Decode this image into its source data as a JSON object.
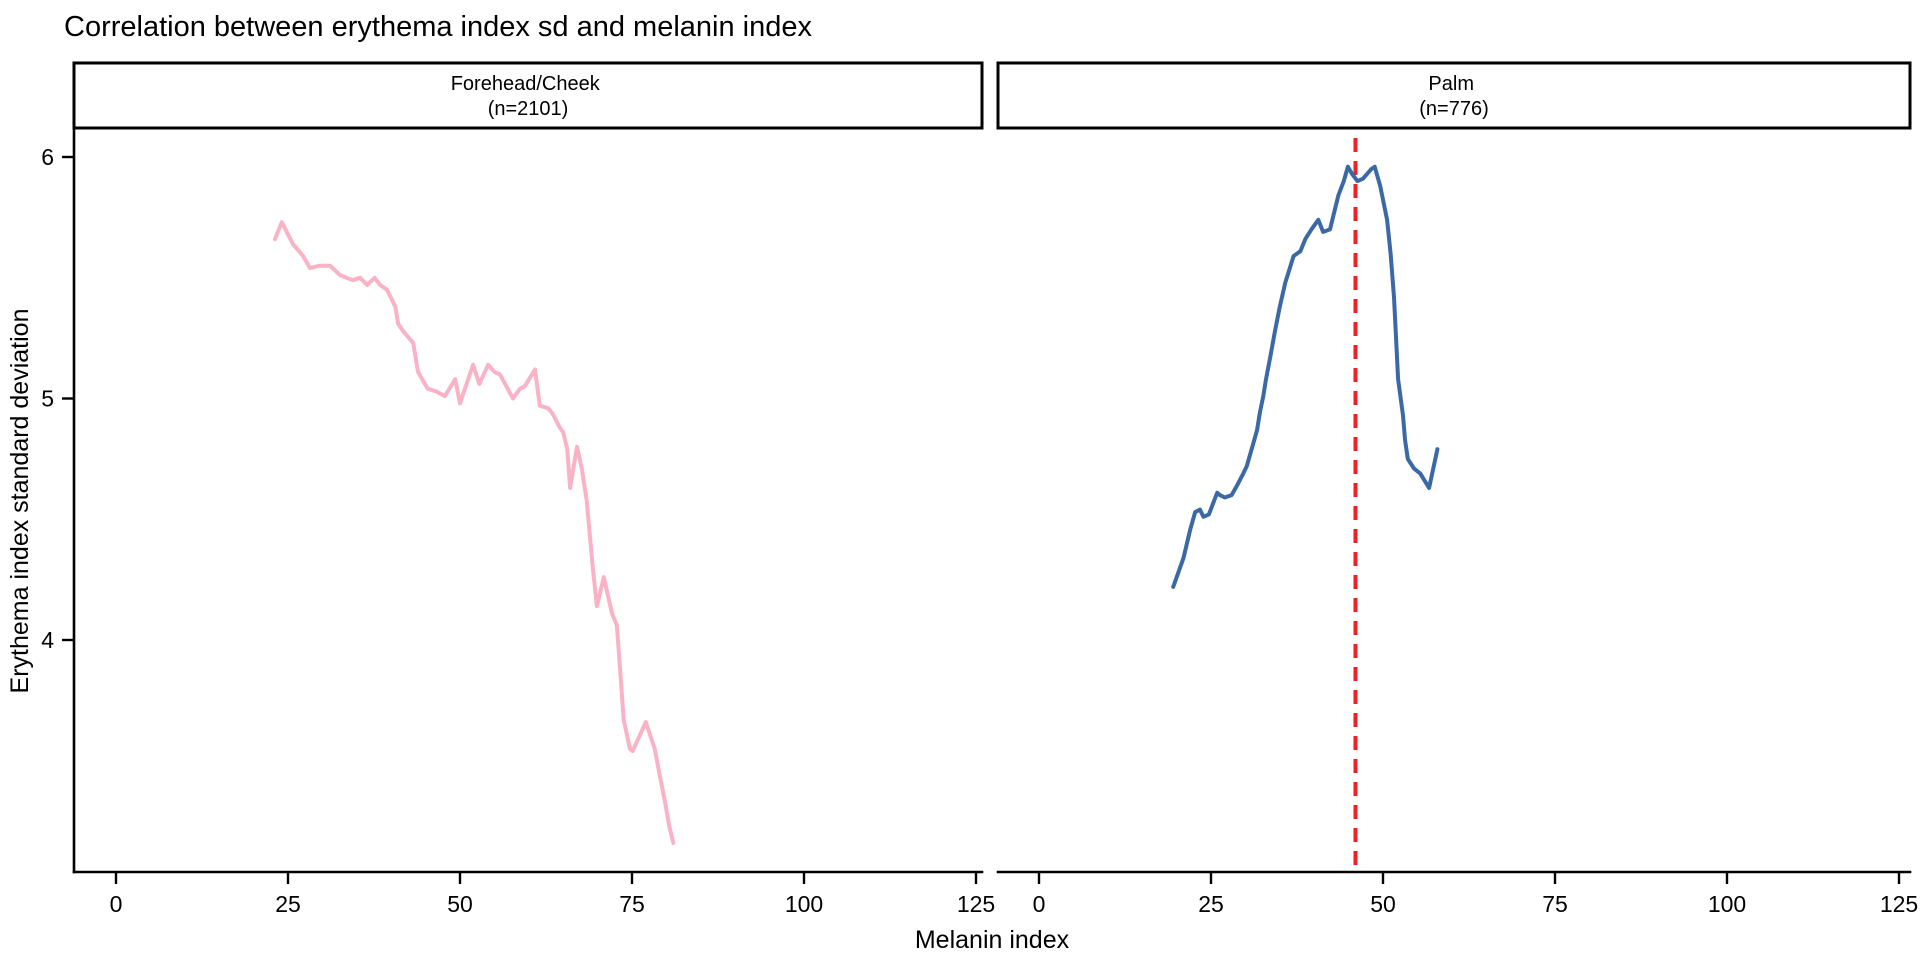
{
  "title": "Correlation between erythema index sd and melanin index",
  "x_axis": {
    "label": "Melanin index",
    "ticks": [
      "0",
      "25",
      "50",
      "75",
      "100",
      "125"
    ]
  },
  "y_axis": {
    "label": "Erythema index standard deviation",
    "ticks": [
      "4",
      "5",
      "6"
    ]
  },
  "facets": [
    {
      "strip_line1": "Forehead/Cheek",
      "strip_line2": "(n=2101)"
    },
    {
      "strip_line1": "Palm",
      "strip_line2": "(n=776)"
    }
  ],
  "colors": {
    "forehead_cheek_line": "#F9B2C6",
    "palm_line": "#3A69A5",
    "reference_line": "#EE2222",
    "axis": "#000000",
    "background": "#FFFFFF"
  },
  "chart_data": {
    "type": "line",
    "title": "Correlation between erythema index sd and melanin index",
    "xlabel": "Melanin index",
    "ylabel": "Erythema index standard deviation",
    "x_ticks": [
      0,
      25,
      50,
      75,
      100,
      125
    ],
    "y_ticks": [
      4,
      5,
      6
    ],
    "xlim": [
      -6,
      126
    ],
    "ylim": [
      3.05,
      6.1
    ],
    "grid": false,
    "legend": false,
    "facets": [
      {
        "name": "Forehead/Cheek",
        "n": 2101,
        "color": "#F9B2C6",
        "points": [
          [
            23.1,
            5.66
          ],
          [
            24.1,
            5.73
          ],
          [
            25.7,
            5.64
          ],
          [
            27.2,
            5.59
          ],
          [
            28.2,
            5.54
          ],
          [
            29.6,
            5.55
          ],
          [
            31.1,
            5.55
          ],
          [
            32.6,
            5.51
          ],
          [
            34.4,
            5.49
          ],
          [
            35.5,
            5.5
          ],
          [
            36.5,
            5.47
          ],
          [
            37.6,
            5.5
          ],
          [
            38.4,
            5.47
          ],
          [
            39.4,
            5.45
          ],
          [
            40.6,
            5.38
          ],
          [
            41.0,
            5.31
          ],
          [
            41.7,
            5.28
          ],
          [
            43.2,
            5.23
          ],
          [
            43.9,
            5.11
          ],
          [
            45.3,
            5.04
          ],
          [
            46.5,
            5.03
          ],
          [
            47.8,
            5.01
          ],
          [
            49.3,
            5.08
          ],
          [
            50.0,
            4.98
          ],
          [
            51.9,
            5.14
          ],
          [
            52.8,
            5.06
          ],
          [
            54.1,
            5.14
          ],
          [
            55.0,
            5.11
          ],
          [
            55.8,
            5.1
          ],
          [
            57.7,
            5.0
          ],
          [
            58.7,
            5.04
          ],
          [
            59.4,
            5.05
          ],
          [
            60.9,
            5.12
          ],
          [
            61.6,
            4.97
          ],
          [
            62.8,
            4.96
          ],
          [
            63.4,
            4.94
          ],
          [
            64.5,
            4.88
          ],
          [
            65.0,
            4.86
          ],
          [
            65.6,
            4.79
          ],
          [
            66.0,
            4.63
          ],
          [
            67.0,
            4.8
          ],
          [
            67.7,
            4.71
          ],
          [
            68.4,
            4.58
          ],
          [
            69.3,
            4.3
          ],
          [
            69.9,
            4.14
          ],
          [
            70.9,
            4.26
          ],
          [
            72.1,
            4.11
          ],
          [
            72.8,
            4.06
          ],
          [
            73.8,
            3.67
          ],
          [
            74.7,
            3.55
          ],
          [
            75.1,
            3.54
          ],
          [
            77.0,
            3.66
          ],
          [
            78.3,
            3.55
          ],
          [
            79.1,
            3.43
          ],
          [
            79.8,
            3.33
          ],
          [
            80.4,
            3.23
          ],
          [
            81.0,
            3.16
          ]
        ]
      },
      {
        "name": "Palm",
        "n": 776,
        "color": "#3A69A5",
        "points": [
          [
            19.5,
            4.22
          ],
          [
            21.0,
            4.34
          ],
          [
            22.0,
            4.46
          ],
          [
            22.7,
            4.53
          ],
          [
            23.4,
            4.54
          ],
          [
            23.9,
            4.51
          ],
          [
            24.7,
            4.52
          ],
          [
            25.9,
            4.61
          ],
          [
            26.3,
            4.6
          ],
          [
            27.0,
            4.59
          ],
          [
            28.0,
            4.6
          ],
          [
            28.8,
            4.64
          ],
          [
            29.7,
            4.69
          ],
          [
            30.2,
            4.72
          ],
          [
            31.1,
            4.81
          ],
          [
            31.7,
            4.87
          ],
          [
            32.1,
            4.94
          ],
          [
            32.6,
            5.01
          ],
          [
            33.0,
            5.08
          ],
          [
            33.6,
            5.17
          ],
          [
            34.3,
            5.28
          ],
          [
            35.0,
            5.38
          ],
          [
            35.8,
            5.48
          ],
          [
            37.0,
            5.59
          ],
          [
            38.0,
            5.61
          ],
          [
            38.7,
            5.66
          ],
          [
            39.6,
            5.7
          ],
          [
            40.6,
            5.74
          ],
          [
            41.3,
            5.69
          ],
          [
            42.3,
            5.7
          ],
          [
            43.5,
            5.84
          ],
          [
            44.3,
            5.9
          ],
          [
            44.9,
            5.96
          ],
          [
            45.5,
            5.93
          ],
          [
            46.3,
            5.9
          ],
          [
            47.1,
            5.91
          ],
          [
            48.3,
            5.95
          ],
          [
            48.8,
            5.96
          ],
          [
            49.6,
            5.88
          ],
          [
            50.6,
            5.74
          ],
          [
            51.1,
            5.6
          ],
          [
            51.6,
            5.42
          ],
          [
            52.2,
            5.08
          ],
          [
            52.9,
            4.93
          ],
          [
            53.2,
            4.83
          ],
          [
            53.6,
            4.75
          ],
          [
            54.5,
            4.71
          ],
          [
            55.4,
            4.69
          ],
          [
            56.7,
            4.63
          ],
          [
            57.9,
            4.79
          ]
        ],
        "vline": {
          "x": 46,
          "color": "#EE2222",
          "style": "dashed"
        }
      }
    ]
  }
}
